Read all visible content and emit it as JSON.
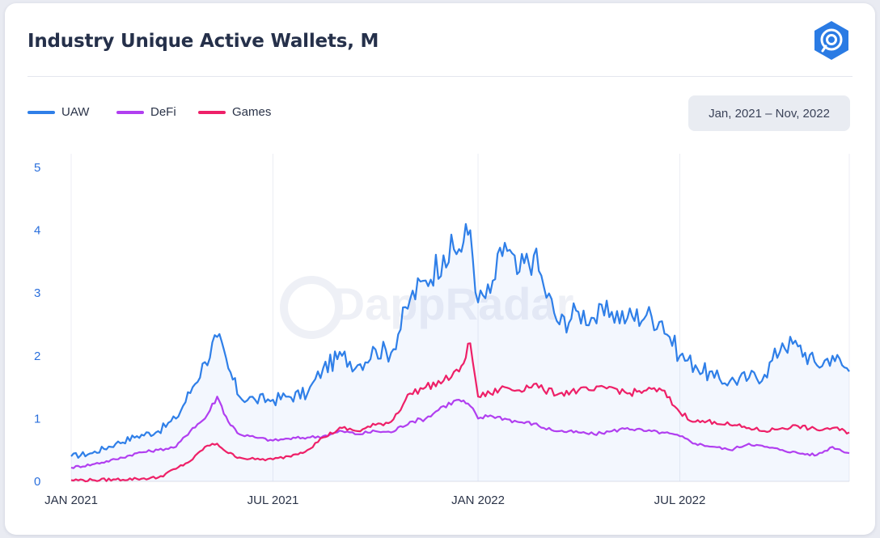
{
  "header": {
    "title": "Industry Unique Active Wallets, M",
    "logo": "dappradar-logo-icon"
  },
  "range_button": {
    "label": "Jan, 2021 – Nov, 2022"
  },
  "watermark": "DappRadar",
  "colors": {
    "UAW": "#2f7fe8",
    "DeFi": "#b13ff0",
    "Games": "#ee2068",
    "axis_tick": "#2a6fdc",
    "grid": "#eceef4"
  },
  "chart_data": {
    "type": "line",
    "x_type": "date",
    "x_range": [
      "2021-01-01",
      "2022-11-30"
    ],
    "y_range": [
      0,
      5
    ],
    "y_ticks": [
      0,
      1,
      2,
      3,
      4,
      5
    ],
    "x_ticks": [
      {
        "date": "2021-01-01",
        "label": "JAN 2021"
      },
      {
        "date": "2021-07-01",
        "label": "JUL 2021"
      },
      {
        "date": "2022-01-01",
        "label": "JAN 2022"
      },
      {
        "date": "2022-07-01",
        "label": "JUL 2022"
      }
    ],
    "grid": "vertical",
    "legend_position": "top-left",
    "series": [
      {
        "name": "UAW",
        "color": "#2f7fe8",
        "points": [
          [
            "2021-01-01",
            0.4
          ],
          [
            "2021-01-20",
            0.45
          ],
          [
            "2021-02-10",
            0.6
          ],
          [
            "2021-03-01",
            0.72
          ],
          [
            "2021-03-20",
            0.8
          ],
          [
            "2021-04-05",
            1.0
          ],
          [
            "2021-04-20",
            1.5
          ],
          [
            "2021-05-01",
            1.9
          ],
          [
            "2021-05-12",
            2.3
          ],
          [
            "2021-05-22",
            1.8
          ],
          [
            "2021-06-01",
            1.35
          ],
          [
            "2021-06-15",
            1.3
          ],
          [
            "2021-07-01",
            1.3
          ],
          [
            "2021-07-15",
            1.35
          ],
          [
            "2021-08-01",
            1.4
          ],
          [
            "2021-08-15",
            1.8
          ],
          [
            "2021-09-01",
            2.0
          ],
          [
            "2021-09-15",
            1.85
          ],
          [
            "2021-10-01",
            2.1
          ],
          [
            "2021-10-15",
            2.05
          ],
          [
            "2021-11-01",
            2.9
          ],
          [
            "2021-11-15",
            3.2
          ],
          [
            "2021-12-01",
            3.6
          ],
          [
            "2021-12-15",
            3.7
          ],
          [
            "2021-12-25",
            4.0
          ],
          [
            "2022-01-01",
            2.85
          ],
          [
            "2022-01-12",
            3.0
          ],
          [
            "2022-01-25",
            3.8
          ],
          [
            "2022-02-05",
            3.3
          ],
          [
            "2022-02-20",
            3.6
          ],
          [
            "2022-03-01",
            3.1
          ],
          [
            "2022-03-15",
            2.5
          ],
          [
            "2022-04-01",
            2.7
          ],
          [
            "2022-04-15",
            2.6
          ],
          [
            "2022-05-01",
            2.7
          ],
          [
            "2022-05-15",
            2.6
          ],
          [
            "2022-06-01",
            2.65
          ],
          [
            "2022-06-15",
            2.55
          ],
          [
            "2022-07-01",
            2.0
          ],
          [
            "2022-07-15",
            1.85
          ],
          [
            "2022-08-01",
            1.65
          ],
          [
            "2022-08-15",
            1.6
          ],
          [
            "2022-09-01",
            1.65
          ],
          [
            "2022-09-15",
            1.7
          ],
          [
            "2022-10-01",
            2.2
          ],
          [
            "2022-10-15",
            2.15
          ],
          [
            "2022-11-01",
            1.85
          ],
          [
            "2022-11-15",
            2.0
          ],
          [
            "2022-11-30",
            1.75
          ]
        ]
      },
      {
        "name": "DeFi",
        "color": "#b13ff0",
        "points": [
          [
            "2021-01-01",
            0.22
          ],
          [
            "2021-01-20",
            0.27
          ],
          [
            "2021-02-10",
            0.35
          ],
          [
            "2021-03-01",
            0.45
          ],
          [
            "2021-03-20",
            0.5
          ],
          [
            "2021-04-05",
            0.55
          ],
          [
            "2021-04-20",
            0.85
          ],
          [
            "2021-05-01",
            1.0
          ],
          [
            "2021-05-12",
            1.35
          ],
          [
            "2021-05-22",
            0.95
          ],
          [
            "2021-06-01",
            0.75
          ],
          [
            "2021-06-15",
            0.7
          ],
          [
            "2021-07-01",
            0.65
          ],
          [
            "2021-07-15",
            0.68
          ],
          [
            "2021-08-01",
            0.7
          ],
          [
            "2021-08-15",
            0.72
          ],
          [
            "2021-09-01",
            0.8
          ],
          [
            "2021-09-15",
            0.75
          ],
          [
            "2021-10-01",
            0.8
          ],
          [
            "2021-10-15",
            0.78
          ],
          [
            "2021-11-01",
            0.95
          ],
          [
            "2021-11-15",
            1.0
          ],
          [
            "2021-12-01",
            1.2
          ],
          [
            "2021-12-15",
            1.3
          ],
          [
            "2021-12-25",
            1.2
          ],
          [
            "2022-01-01",
            1.0
          ],
          [
            "2022-01-12",
            1.05
          ],
          [
            "2022-01-25",
            1.0
          ],
          [
            "2022-02-05",
            0.95
          ],
          [
            "2022-02-20",
            0.92
          ],
          [
            "2022-03-01",
            0.85
          ],
          [
            "2022-03-15",
            0.8
          ],
          [
            "2022-04-01",
            0.78
          ],
          [
            "2022-04-15",
            0.75
          ],
          [
            "2022-05-01",
            0.8
          ],
          [
            "2022-05-15",
            0.85
          ],
          [
            "2022-06-01",
            0.8
          ],
          [
            "2022-06-15",
            0.78
          ],
          [
            "2022-07-01",
            0.72
          ],
          [
            "2022-07-15",
            0.6
          ],
          [
            "2022-08-01",
            0.55
          ],
          [
            "2022-08-15",
            0.5
          ],
          [
            "2022-09-01",
            0.6
          ],
          [
            "2022-09-15",
            0.55
          ],
          [
            "2022-10-01",
            0.5
          ],
          [
            "2022-10-15",
            0.45
          ],
          [
            "2022-11-01",
            0.42
          ],
          [
            "2022-11-15",
            0.55
          ],
          [
            "2022-11-30",
            0.45
          ]
        ]
      },
      {
        "name": "Games",
        "color": "#ee2068",
        "points": [
          [
            "2021-01-01",
            0.02
          ],
          [
            "2021-01-20",
            0.02
          ],
          [
            "2021-02-10",
            0.03
          ],
          [
            "2021-03-01",
            0.04
          ],
          [
            "2021-03-20",
            0.06
          ],
          [
            "2021-04-05",
            0.2
          ],
          [
            "2021-04-20",
            0.35
          ],
          [
            "2021-05-01",
            0.55
          ],
          [
            "2021-05-12",
            0.6
          ],
          [
            "2021-05-22",
            0.45
          ],
          [
            "2021-06-01",
            0.38
          ],
          [
            "2021-06-15",
            0.35
          ],
          [
            "2021-07-01",
            0.35
          ],
          [
            "2021-07-15",
            0.4
          ],
          [
            "2021-08-01",
            0.5
          ],
          [
            "2021-08-15",
            0.7
          ],
          [
            "2021-09-01",
            0.85
          ],
          [
            "2021-09-15",
            0.8
          ],
          [
            "2021-10-01",
            0.9
          ],
          [
            "2021-10-15",
            0.95
          ],
          [
            "2021-11-01",
            1.4
          ],
          [
            "2021-11-15",
            1.5
          ],
          [
            "2021-12-01",
            1.6
          ],
          [
            "2021-12-15",
            1.75
          ],
          [
            "2021-12-25",
            2.2
          ],
          [
            "2022-01-01",
            1.35
          ],
          [
            "2022-01-12",
            1.4
          ],
          [
            "2022-01-25",
            1.5
          ],
          [
            "2022-02-05",
            1.45
          ],
          [
            "2022-02-20",
            1.55
          ],
          [
            "2022-03-01",
            1.45
          ],
          [
            "2022-03-15",
            1.4
          ],
          [
            "2022-04-01",
            1.45
          ],
          [
            "2022-04-15",
            1.45
          ],
          [
            "2022-05-01",
            1.5
          ],
          [
            "2022-05-15",
            1.4
          ],
          [
            "2022-06-01",
            1.45
          ],
          [
            "2022-06-15",
            1.45
          ],
          [
            "2022-07-01",
            1.1
          ],
          [
            "2022-07-15",
            0.95
          ],
          [
            "2022-08-01",
            0.95
          ],
          [
            "2022-08-15",
            0.9
          ],
          [
            "2022-09-01",
            0.85
          ],
          [
            "2022-09-15",
            0.8
          ],
          [
            "2022-10-01",
            0.85
          ],
          [
            "2022-10-15",
            0.88
          ],
          [
            "2022-11-01",
            0.82
          ],
          [
            "2022-11-15",
            0.85
          ],
          [
            "2022-11-30",
            0.78
          ]
        ]
      }
    ]
  }
}
